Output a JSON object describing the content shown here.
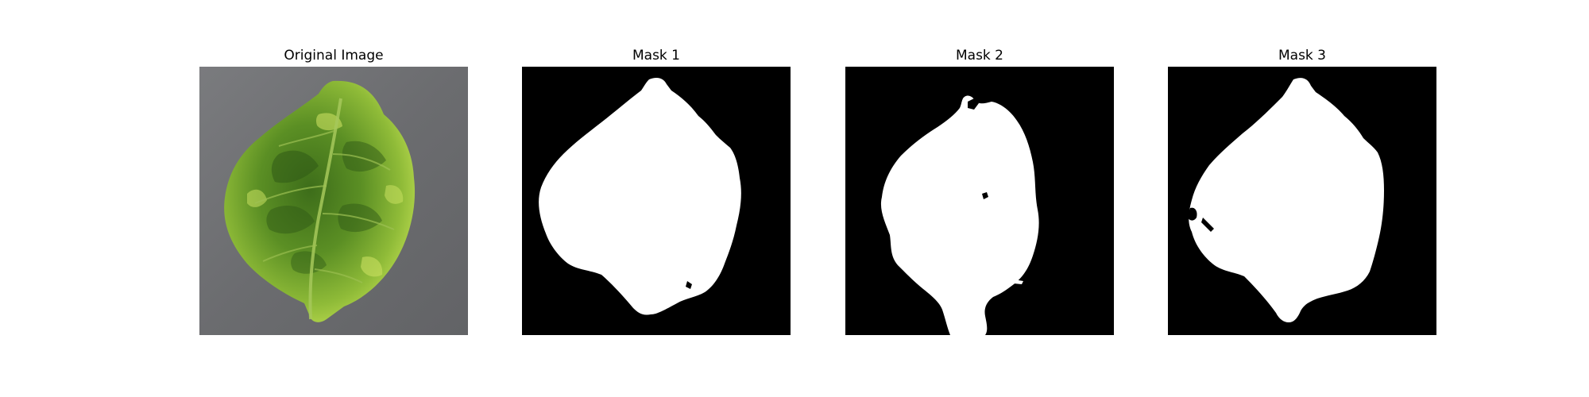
{
  "figure": {
    "panels": [
      {
        "title": "Original Image",
        "kind": "photo"
      },
      {
        "title": "Mask 1",
        "kind": "mask"
      },
      {
        "title": "Mask 2",
        "kind": "mask"
      },
      {
        "title": "Mask 3",
        "kind": "mask"
      }
    ]
  },
  "colors": {
    "background": "#ffffff",
    "mask_background": "#000000",
    "mask_foreground": "#ffffff",
    "photo_surface": "#6f7073",
    "leaf_dark": "#2f5a16",
    "leaf_mid": "#5b8f24",
    "leaf_light": "#b9d94f"
  }
}
